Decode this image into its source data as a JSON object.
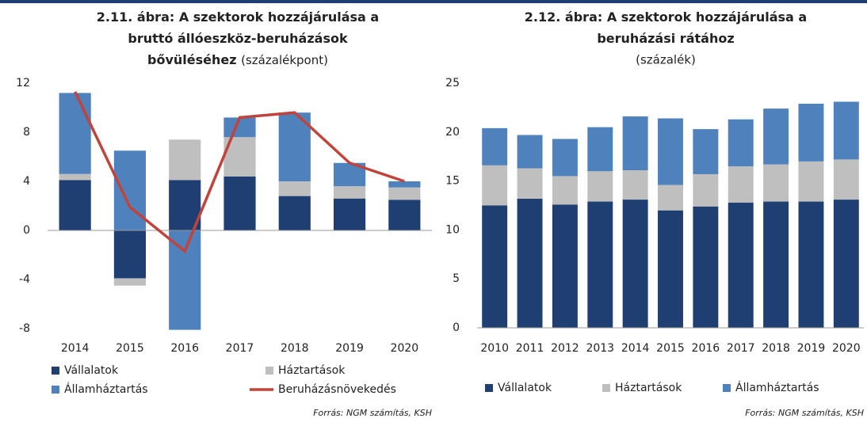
{
  "chart_data": [
    {
      "type": "bar",
      "stacked": true,
      "title": [
        "2.11. ábra: A szektorok hozzájárulása a",
        "bruttó állóeszköz-beruházások",
        "bővüléséhez"
      ],
      "subtitle": "(százalékpont)",
      "categories": [
        "2014",
        "2015",
        "2016",
        "2017",
        "2018",
        "2019",
        "2020"
      ],
      "series": [
        {
          "name": "Vállalatok",
          "color": "#1f3f73",
          "values": [
            4.1,
            -3.9,
            4.1,
            4.4,
            2.8,
            2.6,
            2.5
          ]
        },
        {
          "name": "Háztartások",
          "color": "#bfbfbf",
          "values": [
            0.5,
            -0.6,
            3.3,
            3.2,
            1.2,
            1.0,
            1.0
          ]
        },
        {
          "name": "Államháztartás",
          "color": "#4f81bd",
          "values": [
            6.6,
            6.5,
            -8.1,
            1.6,
            5.6,
            1.9,
            0.5
          ]
        },
        {
          "name": "Beruházásnövekedés",
          "color": "#c0443c",
          "type": "line",
          "values": [
            11.3,
            1.9,
            -1.7,
            9.2,
            9.6,
            5.5,
            4.0
          ]
        }
      ],
      "ylim": [
        -8,
        12
      ],
      "yticks": [
        -8,
        -4,
        0,
        4,
        8,
        12
      ],
      "source": "Forrás: NGM számítás, KSH"
    },
    {
      "type": "bar",
      "stacked": true,
      "title": [
        "2.12. ábra: A szektorok hozzájárulása a",
        "beruházási rátához"
      ],
      "subtitle": "(százalék)",
      "categories": [
        "2010",
        "2011",
        "2012",
        "2013",
        "2014",
        "2015",
        "2016",
        "2017",
        "2018",
        "2019",
        "2020"
      ],
      "series": [
        {
          "name": "Vállalatok",
          "color": "#1f3f73",
          "values": [
            12.5,
            13.2,
            12.6,
            12.9,
            13.1,
            12.0,
            12.4,
            12.8,
            12.9,
            12.9,
            13.1
          ]
        },
        {
          "name": "Háztartások",
          "color": "#bfbfbf",
          "values": [
            4.1,
            3.1,
            2.9,
            3.1,
            3.0,
            2.6,
            3.3,
            3.7,
            3.8,
            4.1,
            4.1
          ]
        },
        {
          "name": "Államháztartás",
          "color": "#4f81bd",
          "values": [
            3.8,
            3.4,
            3.8,
            4.5,
            5.5,
            6.8,
            4.6,
            4.8,
            5.7,
            5.9,
            5.9
          ]
        }
      ],
      "ylim": [
        0,
        25
      ],
      "yticks": [
        0,
        5,
        10,
        15,
        20,
        25
      ],
      "source": "Forrás: NGM számítás, KSH"
    }
  ]
}
